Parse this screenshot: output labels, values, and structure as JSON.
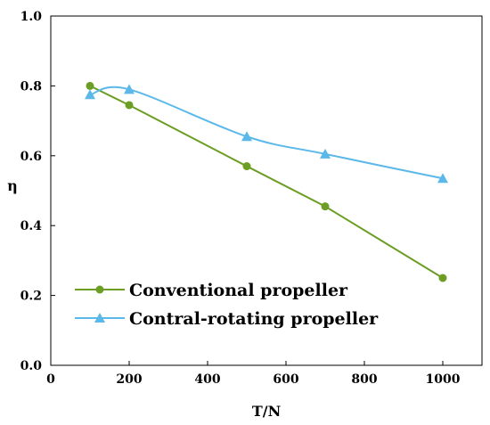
{
  "chart_data": {
    "type": "line",
    "title": "",
    "xlabel": "T/N",
    "ylabel": "η",
    "xlim": [
      0,
      1100
    ],
    "ylim": [
      0.0,
      1.0
    ],
    "xticks": [
      "0",
      "200",
      "400",
      "600",
      "800",
      "1000"
    ],
    "yticks": [
      "0.0",
      "0.2",
      "0.4",
      "0.6",
      "0.8",
      "1.0"
    ],
    "grid": false,
    "legend_position": "bottom-left",
    "series": [
      {
        "name": "Conventional propeller",
        "color": "#6b9e23",
        "marker": "circle",
        "smooth": false,
        "x": [
          100,
          200,
          500,
          700,
          1000
        ],
        "y": [
          0.8,
          0.745,
          0.57,
          0.455,
          0.25
        ]
      },
      {
        "name": "Contral-rotating propeller",
        "color": "#5bb8e8",
        "marker": "triangle",
        "smooth": true,
        "x": [
          100,
          200,
          500,
          700,
          1000
        ],
        "y": [
          0.775,
          0.79,
          0.655,
          0.605,
          0.535
        ]
      }
    ]
  }
}
